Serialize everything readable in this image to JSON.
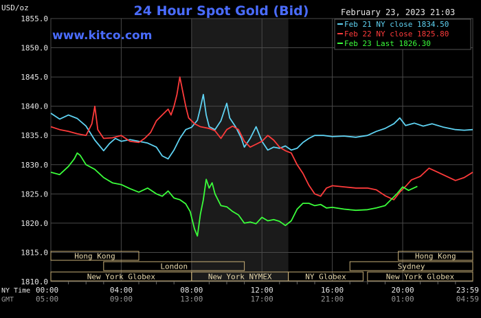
{
  "chart_data": {
    "type": "line",
    "title": "24 Hour Spot Gold (Bid)",
    "website": "www.kitco.com",
    "ylabel": "USD/oz",
    "timestamp": "February 23, 2023 21:03",
    "ylim": [
      1810,
      1855
    ],
    "xlim": [
      0,
      1439
    ],
    "grid": true,
    "legend_position": "top-right",
    "y_ticks": [
      "1810.0",
      "1815.0",
      "1820.0",
      "1825.0",
      "1830.0",
      "1835.0",
      "1840.0",
      "1845.0",
      "1850.0",
      "1855.0"
    ],
    "x_tick_label_rows": [
      {
        "label": "NY Time",
        "ticks": [
          "00:00",
          "04:00",
          "08:00",
          "12:00",
          "16:00",
          "20:00",
          "23:59"
        ]
      },
      {
        "label": "GMT",
        "ticks": [
          "05:00",
          "09:00",
          "13:00",
          "17:00",
          "21:00",
          "01:00",
          "04:59"
        ]
      }
    ],
    "x_tick_minutes": [
      0,
      240,
      480,
      720,
      960,
      1200,
      1439
    ],
    "highlight_band_minutes": [
      480,
      810
    ],
    "sessions": [
      {
        "name": "Hong Kong",
        "start": 0,
        "end": 300,
        "row": 0
      },
      {
        "name": "Hong Kong",
        "start": 1185,
        "end": 1439,
        "row": 0
      },
      {
        "name": "London",
        "start": 180,
        "end": 660,
        "row": 1
      },
      {
        "name": "Sydney",
        "start": 1020,
        "end": 1439,
        "row": 1
      },
      {
        "name": "New York Globex",
        "start": 0,
        "end": 480,
        "row": 2
      },
      {
        "name": "New York NYMEX",
        "start": 480,
        "end": 810,
        "row": 2
      },
      {
        "name": "NY Globex",
        "start": 810,
        "end": 1065,
        "row": 2
      },
      {
        "name": "New York Globex",
        "start": 1080,
        "end": 1439,
        "row": 2
      }
    ],
    "series": [
      {
        "name": "Feb 21 NY close 1834.50",
        "color": "#5fd3f3",
        "points": [
          [
            0,
            1838.8
          ],
          [
            30,
            1837.8
          ],
          [
            60,
            1838.5
          ],
          [
            90,
            1837.9
          ],
          [
            120,
            1836.6
          ],
          [
            150,
            1834.2
          ],
          [
            180,
            1832.4
          ],
          [
            200,
            1833.6
          ],
          [
            220,
            1834.5
          ],
          [
            240,
            1834.0
          ],
          [
            270,
            1834.3
          ],
          [
            300,
            1834.0
          ],
          [
            330,
            1833.7
          ],
          [
            360,
            1833.0
          ],
          [
            380,
            1831.5
          ],
          [
            400,
            1831.0
          ],
          [
            420,
            1832.5
          ],
          [
            440,
            1834.5
          ],
          [
            460,
            1836.0
          ],
          [
            480,
            1836.4
          ],
          [
            500,
            1837.6
          ],
          [
            510,
            1839.7
          ],
          [
            520,
            1842.0
          ],
          [
            530,
            1838.5
          ],
          [
            540,
            1836.5
          ],
          [
            560,
            1836.0
          ],
          [
            580,
            1837.5
          ],
          [
            600,
            1840.5
          ],
          [
            610,
            1838.0
          ],
          [
            630,
            1836.5
          ],
          [
            650,
            1834.5
          ],
          [
            660,
            1833.0
          ],
          [
            680,
            1834.5
          ],
          [
            700,
            1836.5
          ],
          [
            720,
            1834.0
          ],
          [
            740,
            1832.5
          ],
          [
            760,
            1833.0
          ],
          [
            780,
            1832.8
          ],
          [
            800,
            1833.2
          ],
          [
            820,
            1832.5
          ],
          [
            840,
            1832.8
          ],
          [
            860,
            1833.8
          ],
          [
            880,
            1834.5
          ],
          [
            900,
            1835.0
          ],
          [
            930,
            1835.0
          ],
          [
            960,
            1834.8
          ],
          [
            1000,
            1834.9
          ],
          [
            1040,
            1834.7
          ],
          [
            1080,
            1835.0
          ],
          [
            1110,
            1835.7
          ],
          [
            1140,
            1836.2
          ],
          [
            1170,
            1837.0
          ],
          [
            1190,
            1838.0
          ],
          [
            1210,
            1836.7
          ],
          [
            1240,
            1837.1
          ],
          [
            1270,
            1836.6
          ],
          [
            1300,
            1837.0
          ],
          [
            1340,
            1836.4
          ],
          [
            1380,
            1836.0
          ],
          [
            1410,
            1835.9
          ],
          [
            1439,
            1836.0
          ]
        ]
      },
      {
        "name": "Feb 22 NY close 1825.80",
        "color": "#ff3b3b",
        "points": [
          [
            0,
            1836.5
          ],
          [
            30,
            1836.0
          ],
          [
            60,
            1835.7
          ],
          [
            90,
            1835.3
          ],
          [
            120,
            1835.0
          ],
          [
            140,
            1837.0
          ],
          [
            150,
            1840.0
          ],
          [
            160,
            1836.0
          ],
          [
            180,
            1834.5
          ],
          [
            210,
            1834.6
          ],
          [
            240,
            1835.0
          ],
          [
            270,
            1834.0
          ],
          [
            300,
            1833.8
          ],
          [
            320,
            1834.5
          ],
          [
            340,
            1835.5
          ],
          [
            360,
            1837.5
          ],
          [
            380,
            1838.5
          ],
          [
            400,
            1839.5
          ],
          [
            410,
            1838.5
          ],
          [
            420,
            1840.0
          ],
          [
            430,
            1842.0
          ],
          [
            440,
            1845.0
          ],
          [
            450,
            1842.5
          ],
          [
            460,
            1840.0
          ],
          [
            470,
            1838.0
          ],
          [
            490,
            1837.0
          ],
          [
            510,
            1836.5
          ],
          [
            540,
            1836.2
          ],
          [
            560,
            1835.8
          ],
          [
            580,
            1834.5
          ],
          [
            600,
            1836.0
          ],
          [
            620,
            1836.6
          ],
          [
            640,
            1836.0
          ],
          [
            660,
            1834.0
          ],
          [
            680,
            1833.0
          ],
          [
            700,
            1833.5
          ],
          [
            720,
            1834.0
          ],
          [
            740,
            1835.0
          ],
          [
            760,
            1834.2
          ],
          [
            780,
            1833.0
          ],
          [
            800,
            1832.4
          ],
          [
            820,
            1832.0
          ],
          [
            840,
            1830.0
          ],
          [
            860,
            1828.5
          ],
          [
            880,
            1826.5
          ],
          [
            900,
            1825.0
          ],
          [
            920,
            1824.6
          ],
          [
            940,
            1826.0
          ],
          [
            960,
            1826.4
          ],
          [
            1000,
            1826.2
          ],
          [
            1040,
            1826.0
          ],
          [
            1080,
            1826.0
          ],
          [
            1110,
            1825.7
          ],
          [
            1140,
            1824.7
          ],
          [
            1170,
            1824.0
          ],
          [
            1190,
            1825.3
          ],
          [
            1210,
            1826.3
          ],
          [
            1230,
            1827.4
          ],
          [
            1260,
            1828.0
          ],
          [
            1290,
            1829.4
          ],
          [
            1320,
            1828.7
          ],
          [
            1350,
            1828.0
          ],
          [
            1380,
            1827.3
          ],
          [
            1410,
            1827.8
          ],
          [
            1439,
            1828.7
          ]
        ]
      },
      {
        "name": "Feb 23 Last 1826.30",
        "color": "#3bff3b",
        "points": [
          [
            0,
            1828.7
          ],
          [
            30,
            1828.3
          ],
          [
            60,
            1829.7
          ],
          [
            80,
            1831.0
          ],
          [
            90,
            1832.0
          ],
          [
            100,
            1831.6
          ],
          [
            120,
            1830.0
          ],
          [
            150,
            1829.2
          ],
          [
            180,
            1827.8
          ],
          [
            210,
            1826.9
          ],
          [
            240,
            1826.6
          ],
          [
            270,
            1825.9
          ],
          [
            300,
            1825.3
          ],
          [
            330,
            1826.0
          ],
          [
            360,
            1825.0
          ],
          [
            380,
            1824.6
          ],
          [
            400,
            1825.5
          ],
          [
            420,
            1824.3
          ],
          [
            440,
            1824.0
          ],
          [
            460,
            1823.3
          ],
          [
            475,
            1822.0
          ],
          [
            480,
            1821.0
          ],
          [
            490,
            1819.0
          ],
          [
            500,
            1817.8
          ],
          [
            510,
            1821.5
          ],
          [
            520,
            1824.0
          ],
          [
            530,
            1827.5
          ],
          [
            540,
            1826.0
          ],
          [
            550,
            1826.9
          ],
          [
            560,
            1825.0
          ],
          [
            580,
            1823.0
          ],
          [
            600,
            1822.8
          ],
          [
            620,
            1822.0
          ],
          [
            640,
            1821.4
          ],
          [
            660,
            1820.0
          ],
          [
            680,
            1820.2
          ],
          [
            700,
            1819.9
          ],
          [
            720,
            1821.0
          ],
          [
            740,
            1820.4
          ],
          [
            760,
            1820.6
          ],
          [
            780,
            1820.3
          ],
          [
            800,
            1819.6
          ],
          [
            820,
            1820.4
          ],
          [
            840,
            1822.4
          ],
          [
            860,
            1823.4
          ],
          [
            880,
            1823.4
          ],
          [
            900,
            1823.0
          ],
          [
            920,
            1823.2
          ],
          [
            940,
            1822.6
          ],
          [
            960,
            1822.7
          ],
          [
            1000,
            1822.4
          ],
          [
            1040,
            1822.2
          ],
          [
            1080,
            1822.3
          ],
          [
            1110,
            1822.6
          ],
          [
            1140,
            1823.0
          ],
          [
            1160,
            1824.0
          ],
          [
            1180,
            1825.0
          ],
          [
            1200,
            1826.2
          ],
          [
            1220,
            1825.6
          ],
          [
            1250,
            1826.3
          ]
        ]
      }
    ]
  }
}
